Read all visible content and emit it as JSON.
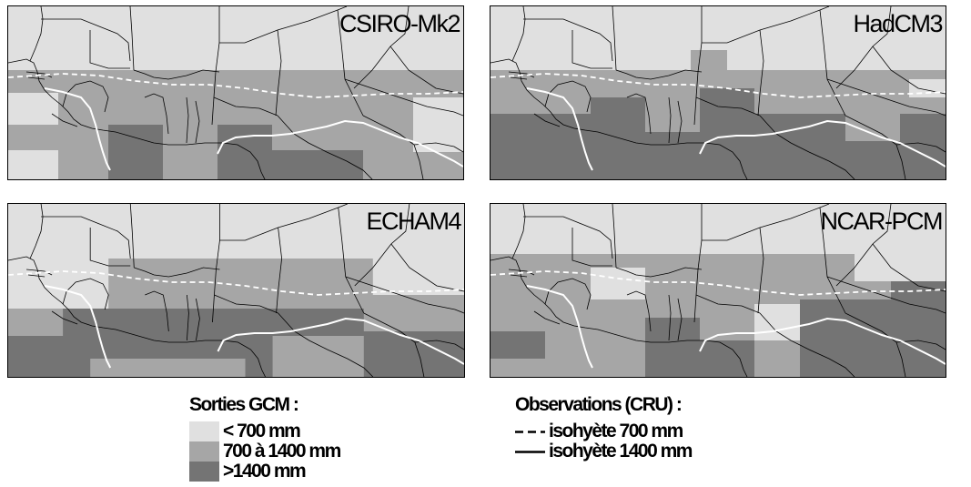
{
  "panels": [
    {
      "title": "CSIRO-Mk2"
    },
    {
      "title": "HadCM3"
    },
    {
      "title": "ECHAM4"
    },
    {
      "title": "NCAR-PCM"
    }
  ],
  "legend_gcm": {
    "title": "Sorties GCM :",
    "items": [
      {
        "label": "< 700 mm",
        "color": "#e0e0e0"
      },
      {
        "label": "700 à 1400 mm",
        "color": "#a6a6a6"
      },
      {
        "label": ">1400 mm",
        "color": "#747474"
      }
    ]
  },
  "legend_obs": {
    "title": "Observations (CRU) :",
    "items": [
      {
        "label": "isohyète 700 mm",
        "style": "dashed"
      },
      {
        "label": "isohyète 1400 mm",
        "style": "solid"
      }
    ]
  },
  "colors": {
    "light": "#e0e0e0",
    "mid": "#a6a6a6",
    "dark": "#747474",
    "isohyet": "#ffffff"
  }
}
